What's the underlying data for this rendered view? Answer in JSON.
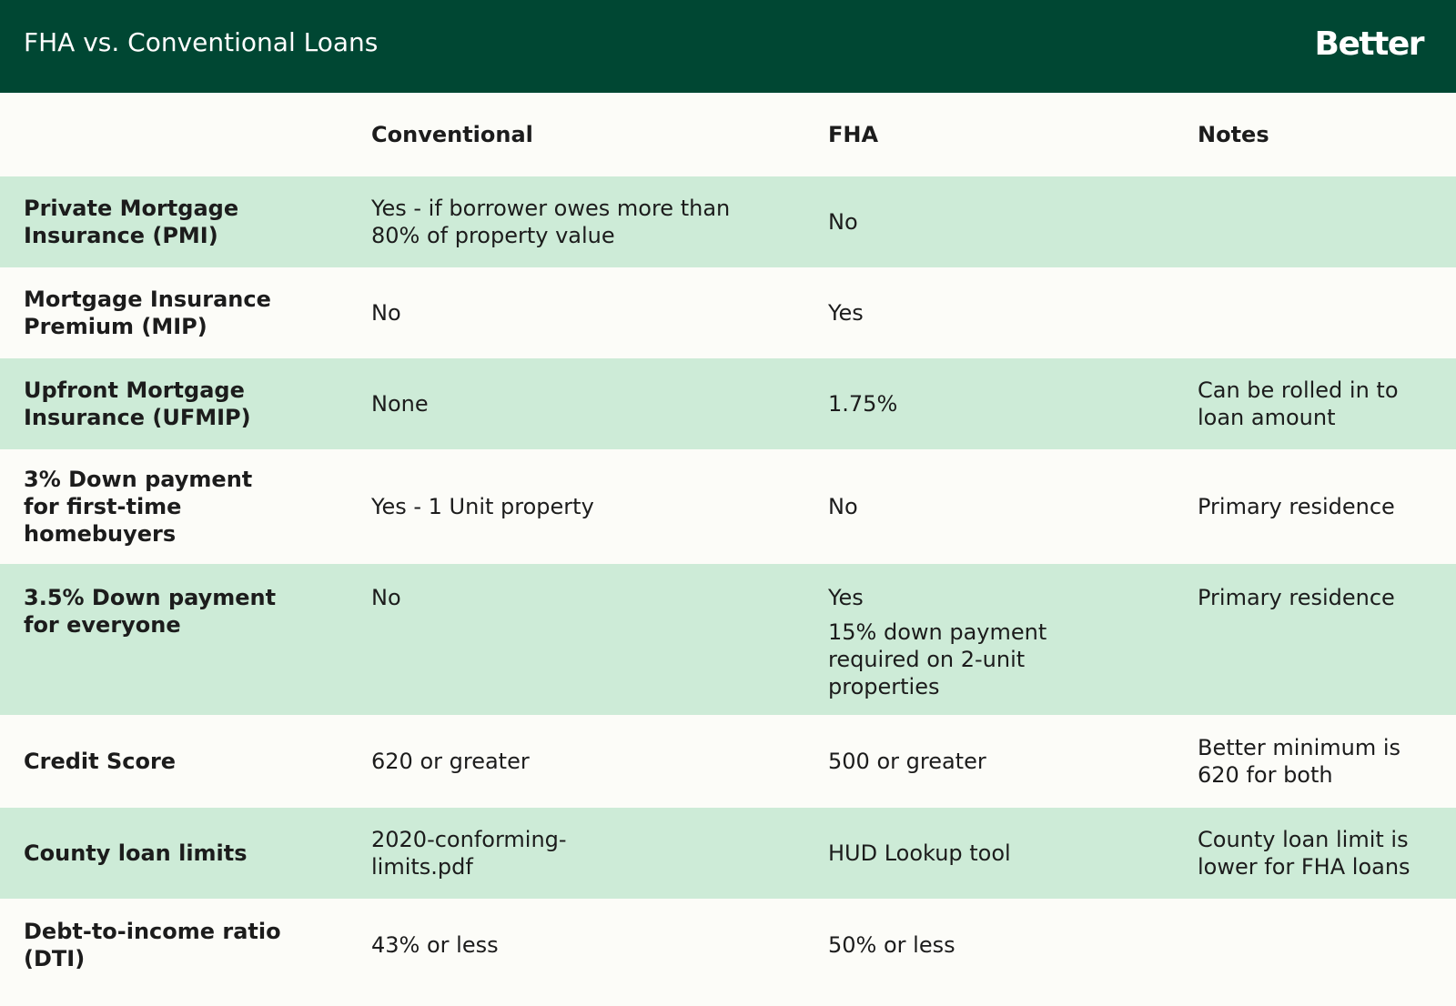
{
  "header": {
    "title": "FHA vs. Conventional Loans",
    "logo": "Better",
    "bg_color": "#004733"
  },
  "table": {
    "columns": [
      "",
      "Conventional",
      "FHA",
      "Notes"
    ],
    "rows": [
      {
        "label": "Private Mortgage Insurance (PMI)",
        "conventional": "Yes - if borrower owes more than 80% of property value",
        "fha": "No",
        "notes": ""
      },
      {
        "label": "Mortgage Insurance Premium (MIP)",
        "conventional": "No",
        "fha": "Yes",
        "notes": ""
      },
      {
        "label": "Upfront Mortgage Insurance (UFMIP)",
        "conventional": "None",
        "fha": "1.75%",
        "notes": "Can be rolled in to loan amount"
      },
      {
        "label": "3% Down payment for first-time homebuyers",
        "conventional": "Yes - 1 Unit property",
        "fha": "No",
        "notes": "Primary residence"
      },
      {
        "label": "3.5% Down payment for everyone",
        "conventional": "No",
        "fha": "Yes",
        "fha_note": "15% down payment required on 2-unit properties",
        "notes": "Primary residence"
      },
      {
        "label": "Credit Score",
        "conventional": "620 or greater",
        "fha": "500 or greater",
        "notes": "Better minimum is 620 for both"
      },
      {
        "label": "County loan limits",
        "conventional": "2020-conforming-limits.pdf",
        "fha": "HUD Lookup tool",
        "notes": "County loan limit is lower for FHA loans"
      },
      {
        "label": "Debt-to-income ratio (DTI)",
        "conventional": "43% or less",
        "fha": "50% or less",
        "notes": ""
      }
    ],
    "row_shade_color": "#cdebd7",
    "row_plain_color": "#fcfcf8"
  }
}
